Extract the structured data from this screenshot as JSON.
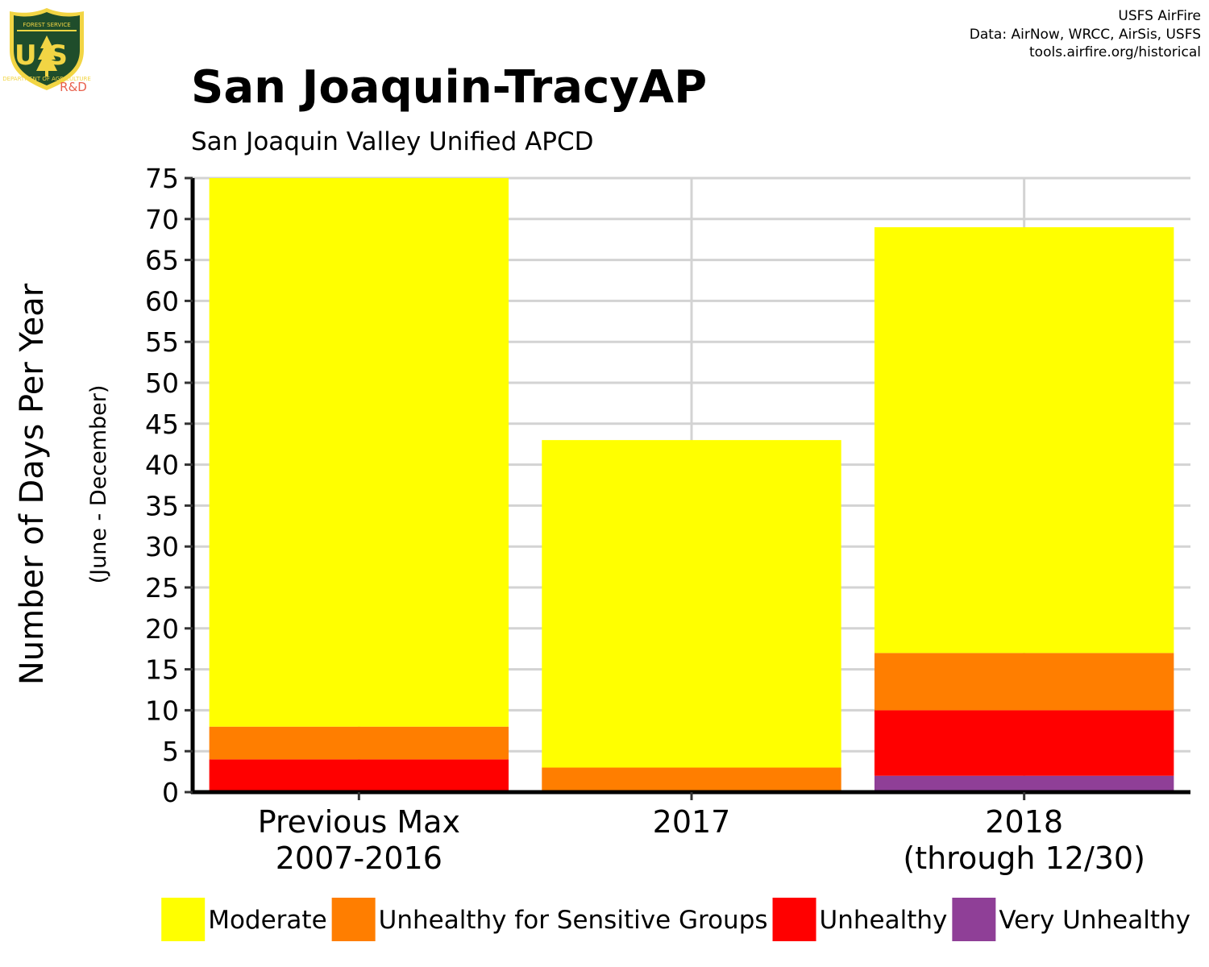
{
  "logo": {
    "top_text": "FOREST SERVICE",
    "letters": "US",
    "bottom_text": "DEPARTMENT OF AGRICULTURE",
    "rd": "R&D",
    "colors": {
      "shield": "#1f4d2b",
      "border": "#f2d544"
    }
  },
  "credits": [
    "USFS AirFire",
    "Data: AirNow, WRCC, AirSis, USFS",
    "tools.airfire.org/historical"
  ],
  "chart_data": {
    "type": "bar",
    "stacked": true,
    "title": "San Joaquin-TracyAP",
    "subtitle": "San Joaquin Valley Unified APCD",
    "ylabel": "Number of Days Per Year",
    "ylabel_sub": "(June - December)",
    "xlabel": "",
    "ylim": [
      0,
      75
    ],
    "yticks": [
      0,
      5,
      10,
      15,
      20,
      25,
      30,
      35,
      40,
      45,
      50,
      55,
      60,
      65,
      70,
      75
    ],
    "grid": true,
    "legend_position": "bottom",
    "categories": [
      [
        "Previous Max",
        "2007-2016"
      ],
      [
        "2017"
      ],
      [
        "2018",
        "(through 12/30)"
      ]
    ],
    "series": [
      {
        "name": "Very Unhealthy",
        "color": "#8f3f97",
        "values": [
          0,
          0,
          2
        ]
      },
      {
        "name": "Unhealthy",
        "color": "#ff0000",
        "values": [
          4,
          0,
          8
        ]
      },
      {
        "name": "Unhealthy for Sensitive Groups",
        "color": "#ff7e00",
        "values": [
          4,
          3,
          7
        ]
      },
      {
        "name": "Moderate",
        "color": "#ffff00",
        "values": [
          67,
          40,
          52
        ]
      }
    ],
    "legend_order": [
      "Moderate",
      "Unhealthy for Sensitive Groups",
      "Unhealthy",
      "Very Unhealthy"
    ]
  }
}
